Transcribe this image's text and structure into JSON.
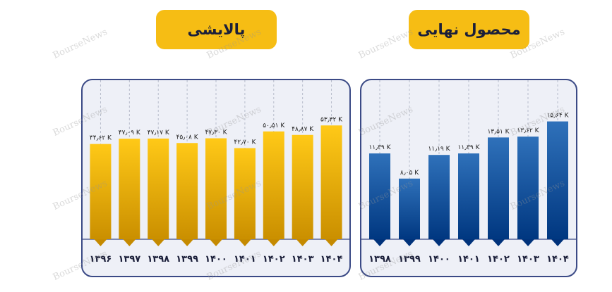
{
  "watermark_text": "BourseNews",
  "chart_data": [
    {
      "type": "bar",
      "title": "پالایشی",
      "categories": [
        "۱۳۹۶",
        "۱۳۹۷",
        "۱۳۹۸",
        "۱۳۹۹",
        "۱۴۰۰",
        "۱۴۰۱",
        "۱۴۰۲",
        "۱۴۰۳",
        "۱۴۰۴"
      ],
      "values": [
        44.62,
        47.09,
        47.17,
        45.08,
        47.3,
        42.7,
        50.51,
        48.87,
        53.32
      ],
      "data_labels": [
        "۴۴٫۶۲ K",
        "۴۷٫۰۹ K",
        "۴۷٫۱۷ K",
        "۴۵٫۰۸ K",
        "۴۷٫۳۰ K",
        "۴۲٫۷۰ K",
        "۵۰٫۵۱ K",
        "۴۸٫۸۷ K",
        "۵۳٫۳۲ K"
      ],
      "ylim": [
        0,
        60
      ],
      "color": "#f2b705",
      "grid": "vertical dashed"
    },
    {
      "type": "bar",
      "title": "محصول نهایی",
      "categories": [
        "۱۳۹۸",
        "۱۳۹۹",
        "۱۴۰۰",
        "۱۴۰۱",
        "۱۴۰۲",
        "۱۴۰۳",
        "۱۴۰۴"
      ],
      "values": [
        11.39,
        8.05,
        11.19,
        11.39,
        13.51,
        13.62,
        15.64
      ],
      "data_labels": [
        "۱۱٫۳۹ K",
        "۸٫۰۵ K",
        "۱۱٫۱۹ K",
        "۱۱٫۳۹ K",
        "۱۳٫۵۱ K",
        "۱۳٫۶۲ K",
        "۱۵٫۶۴ K"
      ],
      "ylim": [
        0,
        17
      ],
      "color": "#1d5fa8",
      "grid": "vertical dashed"
    }
  ]
}
